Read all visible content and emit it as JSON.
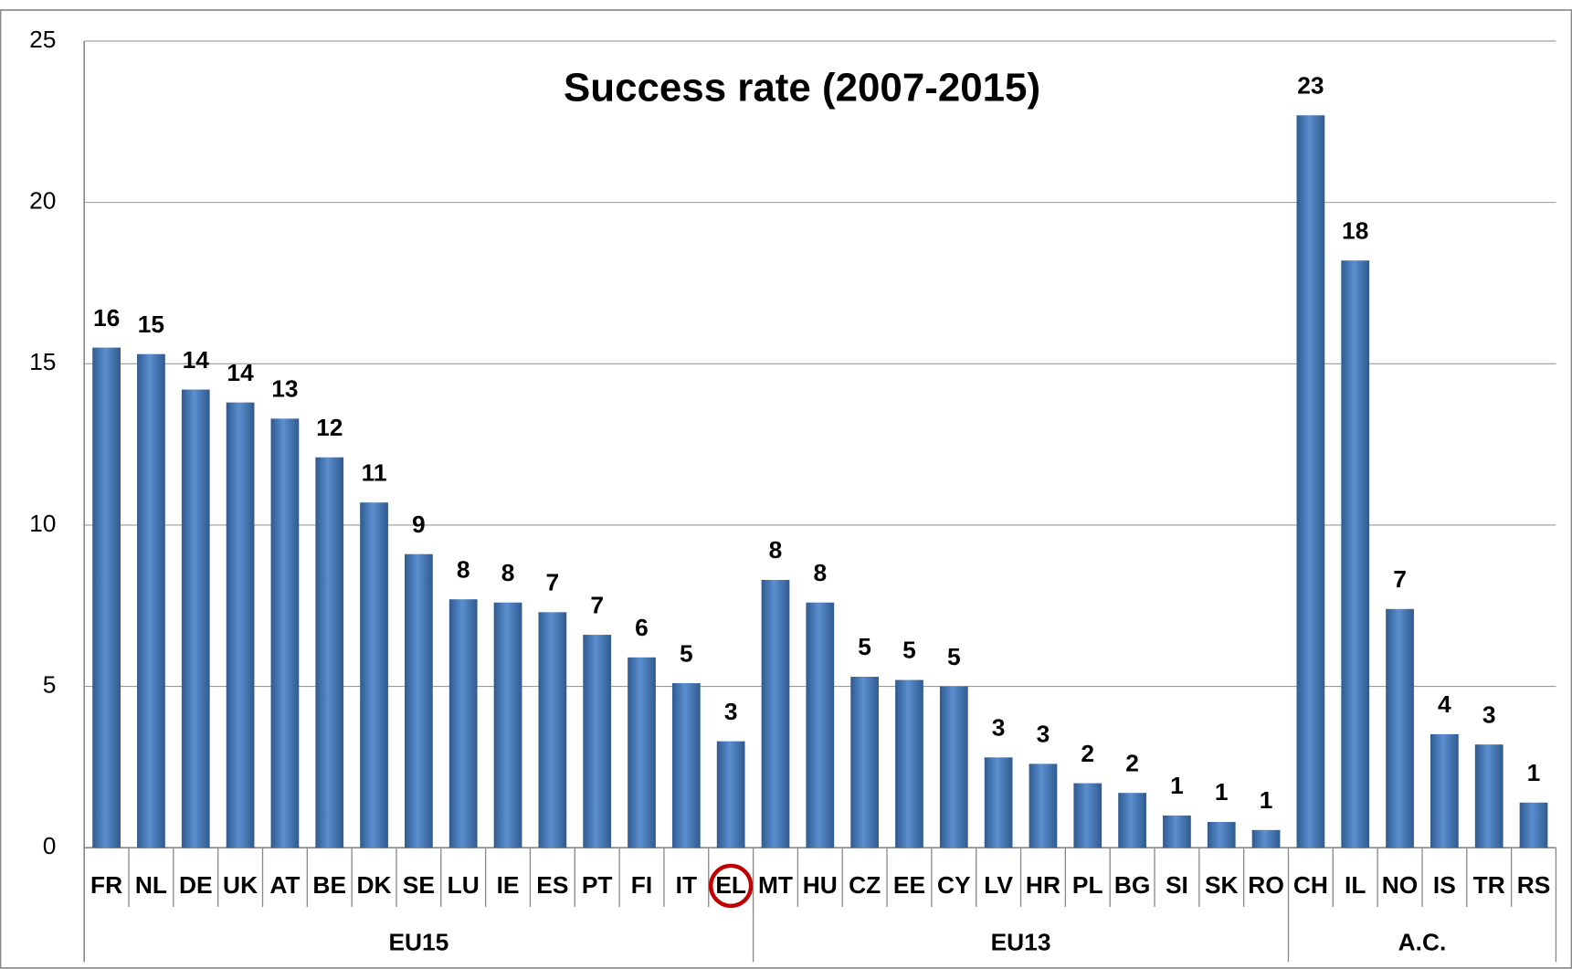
{
  "chart_data": {
    "type": "bar",
    "title": "Success rate (2007-2015)",
    "groups": [
      {
        "name": "EU15",
        "categories": [
          "FR",
          "NL",
          "DE",
          "UK",
          "AT",
          "BE",
          "DK",
          "SE",
          "LU",
          "IE",
          "ES",
          "PT",
          "FI",
          "IT",
          "EL"
        ]
      },
      {
        "name": "EU13",
        "categories": [
          "MT",
          "HU",
          "CZ",
          "EE",
          "CY",
          "LV",
          "HR",
          "PL",
          "BG",
          "SI",
          "SK",
          "RO"
        ]
      },
      {
        "name": "A.C.",
        "categories": [
          "CH",
          "IL",
          "NO",
          "IS",
          "TR",
          "RS"
        ]
      }
    ],
    "values": [
      15.5,
      15.3,
      14.2,
      13.8,
      13.3,
      12.1,
      10.7,
      9.1,
      7.7,
      7.6,
      7.3,
      6.6,
      5.9,
      5.1,
      3.3,
      8.3,
      7.6,
      5.3,
      5.2,
      5.0,
      2.8,
      2.6,
      2.0,
      1.7,
      1.0,
      0.8,
      0.55,
      22.7,
      18.2,
      7.4,
      3.52,
      3.2,
      1.4
    ],
    "value_labels": [
      "16",
      "15",
      "14",
      "14",
      "13",
      "12",
      "11",
      "9",
      "8",
      "8",
      "7",
      "7",
      "6",
      "5",
      "3",
      "8",
      "8",
      "5",
      "5",
      "5",
      "3",
      "3",
      "2",
      "2",
      "1",
      "1",
      "1",
      "23",
      "18",
      "7",
      "4",
      "3",
      "1"
    ],
    "color": "#4f81bd",
    "highlight_color": "#c00000",
    "ylim": [
      0,
      25
    ],
    "yticks": [
      0,
      5,
      10,
      15,
      20,
      25
    ],
    "grid": true
  }
}
